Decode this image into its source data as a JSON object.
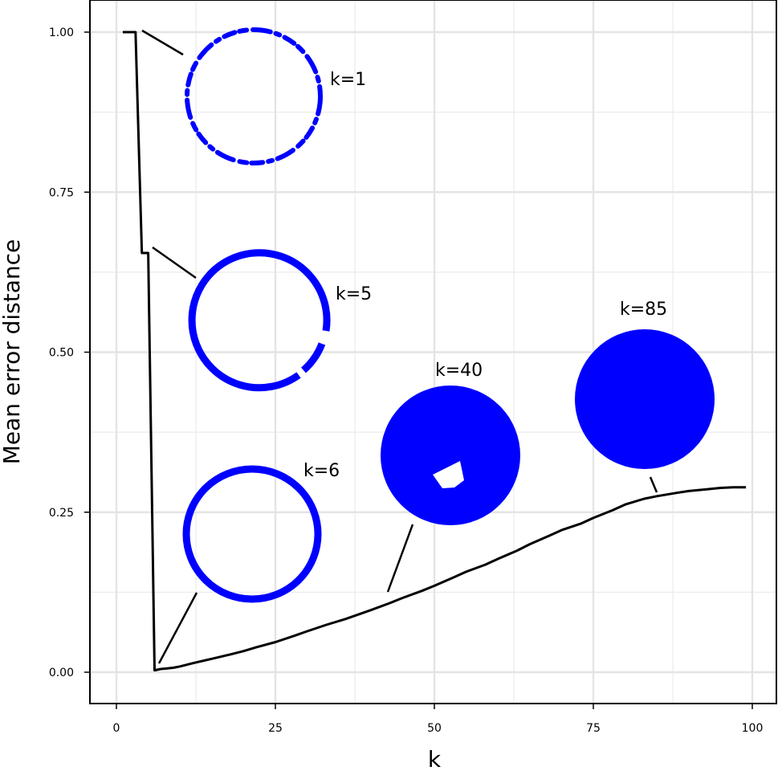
{
  "chart_data": {
    "type": "line",
    "xlabel": "k",
    "ylabel": "Mean error distance",
    "xlim": [
      0,
      100
    ],
    "ylim": [
      0,
      1
    ],
    "x_ticks": [
      "0",
      "25",
      "50",
      "75",
      "100"
    ],
    "y_ticks": [
      "0.00",
      "0.25",
      "0.50",
      "0.75",
      "1.00"
    ],
    "grid": true,
    "line_color": "#000000",
    "x": [
      1,
      2,
      3,
      4,
      5,
      6,
      7,
      8,
      9,
      10,
      12,
      15,
      18,
      20,
      22,
      25,
      28,
      30,
      33,
      36,
      40,
      43,
      45,
      48,
      50,
      53,
      55,
      58,
      60,
      63,
      65,
      68,
      70,
      73,
      75,
      78,
      80,
      83,
      85,
      88,
      90,
      93,
      95,
      97,
      99
    ],
    "y": [
      1.0,
      1.0,
      1.0,
      0.655,
      0.655,
      0.003,
      0.005,
      0.006,
      0.007,
      0.009,
      0.014,
      0.021,
      0.028,
      0.033,
      0.039,
      0.047,
      0.057,
      0.064,
      0.074,
      0.083,
      0.097,
      0.108,
      0.116,
      0.127,
      0.135,
      0.148,
      0.157,
      0.168,
      0.177,
      0.19,
      0.2,
      0.213,
      0.222,
      0.232,
      0.241,
      0.253,
      0.262,
      0.271,
      0.275,
      0.28,
      0.283,
      0.286,
      0.288,
      0.289,
      0.289
    ],
    "annotations": [
      {
        "label": "k=1",
        "kind": "dashed-ring"
      },
      {
        "label": "k=5",
        "kind": "ring-gap"
      },
      {
        "label": "k=6",
        "kind": "ring"
      },
      {
        "label": "k=40",
        "kind": "disk-hole"
      },
      {
        "label": "k=85",
        "kind": "disk"
      }
    ],
    "shape_color": "#0000ff"
  }
}
